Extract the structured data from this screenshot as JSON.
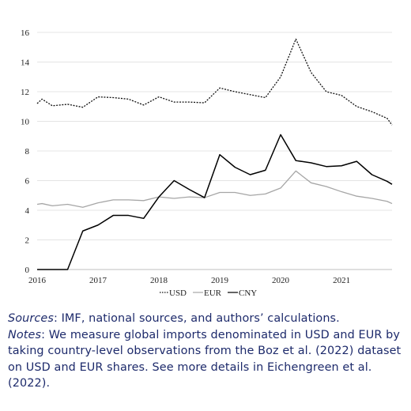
{
  "colors": {
    "usd": "#111111",
    "eur": "#a6a6a6",
    "cny": "#000000",
    "gridline": "#e4e4e4",
    "notes_text": "#1d2a6b"
  },
  "chart_data": {
    "type": "line",
    "title": "",
    "xlabel": "",
    "ylabel": "",
    "ylim": [
      0,
      16
    ],
    "yticks": [
      "0",
      "2",
      "4",
      "6",
      "8",
      "10",
      "12",
      "14",
      "16"
    ],
    "xlim": [
      2016.0,
      2021.83
    ],
    "xticks": [
      "2016",
      "2017",
      "2018",
      "2019",
      "2020",
      "2021"
    ],
    "grid": "horizontal",
    "legend_position": "bottom-center",
    "x": [
      2016.0,
      2016.08,
      2016.25,
      2016.5,
      2016.75,
      2017.0,
      2017.25,
      2017.5,
      2017.75,
      2018.0,
      2018.25,
      2018.5,
      2018.75,
      2019.0,
      2019.25,
      2019.5,
      2019.75,
      2020.0,
      2020.25,
      2020.5,
      2020.75,
      2021.0,
      2021.25,
      2021.5,
      2021.75,
      2021.83
    ],
    "series": [
      {
        "name": "USD",
        "style": "dotted",
        "values": [
          11.2,
          11.5,
          11.05,
          11.15,
          10.95,
          11.65,
          11.6,
          11.5,
          11.1,
          11.65,
          11.3,
          11.3,
          11.25,
          12.25,
          12.0,
          11.8,
          11.6,
          13.0,
          15.55,
          13.3,
          12.0,
          11.75,
          11.0,
          10.65,
          10.2,
          9.75
        ]
      },
      {
        "name": "EUR",
        "style": "solid",
        "values": [
          4.4,
          4.45,
          4.3,
          4.4,
          4.2,
          4.5,
          4.7,
          4.7,
          4.65,
          4.9,
          4.8,
          4.9,
          4.85,
          5.2,
          5.2,
          5.0,
          5.1,
          5.5,
          6.65,
          5.85,
          5.6,
          5.25,
          4.95,
          4.8,
          4.6,
          4.45
        ]
      },
      {
        "name": "CNY",
        "style": "solid",
        "values": [
          0.0,
          0.0,
          0.0,
          0.0,
          2.6,
          3.0,
          3.65,
          3.65,
          3.45,
          4.9,
          6.0,
          5.4,
          4.85,
          7.75,
          6.9,
          6.4,
          6.7,
          9.1,
          7.35,
          7.2,
          6.95,
          7.0,
          7.3,
          6.4,
          5.95,
          5.75
        ]
      }
    ]
  },
  "legend": {
    "usd_label": "USD",
    "eur_label": "EUR",
    "cny_label": "CNY"
  },
  "notes": {
    "sources_lead": "Sources",
    "sources_text": ": IMF, national sources, and authors’ calculations.",
    "notes_lead": "Notes",
    "notes_text": ": We measure global imports denominated in USD and EUR by taking country-level observations from the Boz et al. (2022) dataset on USD and EUR shares. See more details in Eichengreen et al. (2022)."
  }
}
